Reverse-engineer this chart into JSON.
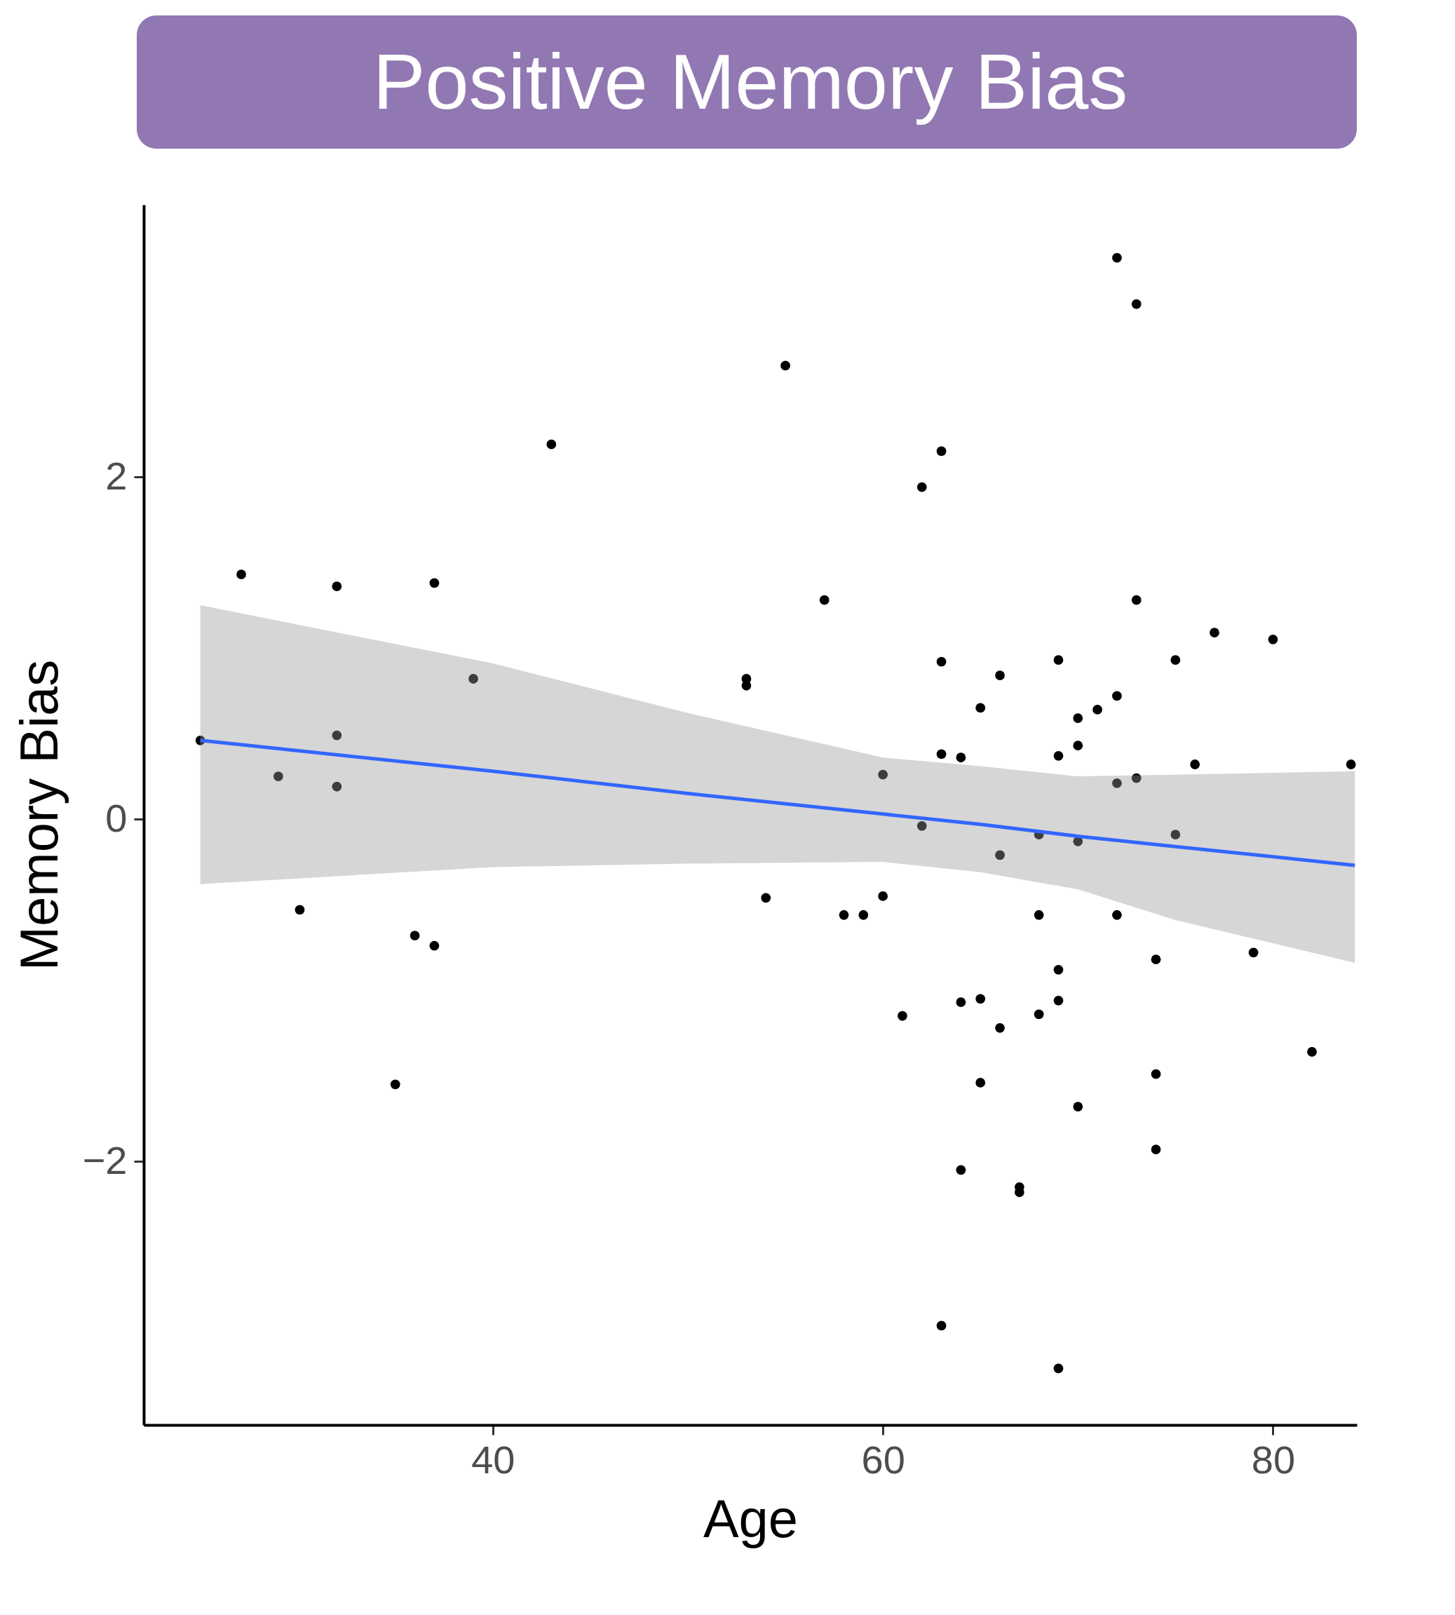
{
  "chart_data": {
    "type": "scatter",
    "title": "Positive Memory Bias",
    "xlabel": "Age",
    "ylabel": "Memory Bias",
    "xlim": [
      22.1,
      84.3
    ],
    "ylim": [
      -3.54,
      3.59
    ],
    "xticks": [
      40,
      60,
      80
    ],
    "yticks": [
      -2,
      0,
      2
    ],
    "grid": false,
    "series": [
      {
        "marker": "circle",
        "color": "#000000",
        "x": [
          25,
          27.1,
          29,
          30.1,
          32,
          32,
          32,
          35,
          36,
          37,
          37,
          39,
          43,
          53,
          53,
          54,
          55,
          57,
          58,
          59,
          60,
          60,
          61,
          62,
          62,
          63,
          63,
          63,
          63,
          64,
          64,
          64,
          65,
          65,
          65,
          66,
          66,
          66,
          67,
          67,
          68,
          68,
          68,
          69,
          69,
          69,
          69,
          69,
          70,
          70,
          70,
          70,
          71,
          72,
          72,
          72,
          72,
          73,
          73,
          73,
          74,
          74,
          74,
          75,
          75,
          76,
          77,
          79,
          80,
          82,
          84
        ],
        "values": [
          0.46,
          1.43,
          0.25,
          -0.53,
          1.36,
          0.49,
          0.19,
          -1.55,
          -0.68,
          1.38,
          -0.74,
          0.82,
          2.19,
          0.82,
          0.78,
          -0.46,
          2.65,
          1.28,
          -0.56,
          -0.56,
          0.26,
          -0.45,
          -1.15,
          1.94,
          -0.04,
          2.15,
          0.92,
          0.38,
          -2.96,
          0.36,
          -1.07,
          -2.05,
          0.65,
          -1.05,
          -1.54,
          0.84,
          -0.21,
          -1.22,
          -2.15,
          -2.18,
          -0.09,
          -0.56,
          -1.14,
          0.93,
          0.37,
          -0.88,
          -1.06,
          -3.21,
          0.59,
          0.43,
          -0.13,
          -1.68,
          0.64,
          3.28,
          0.72,
          0.21,
          -0.56,
          3.01,
          1.28,
          0.24,
          -0.82,
          -1.49,
          -1.93,
          0.93,
          -0.09,
          0.32,
          1.09,
          -0.78,
          1.05,
          -1.36,
          0.32
        ]
      },
      {
        "type": "line",
        "color": "#3366ff",
        "x": [
          25,
          40,
          50,
          60,
          65,
          70,
          75,
          84.2
        ],
        "values": [
          0.46,
          0.28,
          0.15,
          0.03,
          -0.03,
          -0.1,
          -0.16,
          -0.27
        ],
        "lower": [
          -0.38,
          -0.28,
          -0.26,
          -0.25,
          -0.31,
          -0.41,
          -0.59,
          -0.84
        ],
        "upper": [
          1.25,
          0.91,
          0.62,
          0.36,
          0.31,
          0.25,
          0.26,
          0.28
        ]
      }
    ]
  }
}
